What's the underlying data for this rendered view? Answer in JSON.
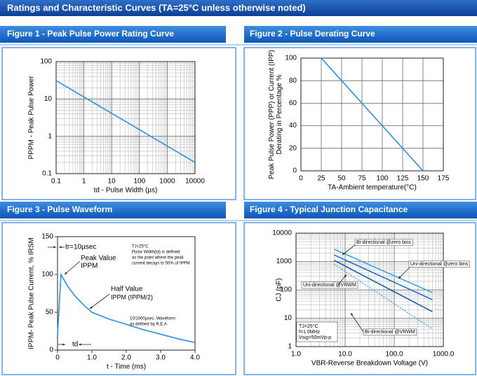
{
  "page_title": "Ratings and Characteristic Curves (TA=25°C unless otherwise noted)",
  "chart_data": [
    {
      "type": "line",
      "title": "Figure 1 - Peak Pulse Power Rating Curve",
      "xlabel": "td - Pulse Width (µs)",
      "ylabel": [
        "PPPM  -  Peak    Pulse    Power"
      ],
      "log_x": true,
      "log_y": true,
      "grid": true,
      "minor_grid": true,
      "color": "#2a8fe0",
      "x": [
        0.1,
        10000
      ],
      "values": [
        31,
        0.2
      ],
      "xlim": [
        0.1,
        10000
      ],
      "xticks": [
        0.1,
        1,
        10,
        100,
        1000,
        10000
      ],
      "ylim": [
        0.1,
        100
      ],
      "yticks": [
        0.1,
        1,
        10,
        100
      ],
      "annotations": []
    },
    {
      "type": "line",
      "title": "Figure 2 - Pulse Derating Curve",
      "xlabel": "TA-Ambient temperature(°C)",
      "ylabel": [
        "Peak Pulse Power (PPP) or Current (IPP)",
        "Derating in Percentage %"
      ],
      "log_x": false,
      "log_y": false,
      "grid": true,
      "minor_grid": false,
      "color": "#2a8fe0",
      "x": [
        25,
        150
      ],
      "values": [
        100,
        0
      ],
      "xlim": [
        0,
        175
      ],
      "xticks": [
        0,
        25,
        50,
        75,
        100,
        125,
        150,
        175
      ],
      "ylim": [
        0,
        100
      ],
      "yticks": [
        0,
        20,
        40,
        60,
        80,
        100
      ],
      "annotations": []
    },
    {
      "type": "line",
      "title": "Figure 3 - Pulse Waveform",
      "xlabel": "t - Time (ms)",
      "ylabel": [
        "IPPM- Peak Pulse Current, % IRSM"
      ],
      "log_x": false,
      "log_y": false,
      "grid": false,
      "minor_grid": false,
      "color": "#2a8fe0",
      "x": [
        0,
        0.1,
        0.3,
        0.5,
        0.75,
        1.0,
        1.5,
        2.0,
        2.5,
        3.0,
        3.5,
        4.0
      ],
      "values": [
        20,
        100,
        84,
        72,
        60,
        50,
        41,
        34,
        27,
        21,
        15,
        10
      ],
      "xlim": [
        0,
        4
      ],
      "xticks": [
        0,
        {
          "value": 1,
          "label": "1.0"
        },
        {
          "value": 2,
          "label": "2.0"
        },
        {
          "value": 3,
          "label": "3.0"
        },
        {
          "value": 4,
          "label": "4.0"
        }
      ],
      "ylim": [
        0,
        150
      ],
      "yticks": [
        0,
        50,
        100,
        150
      ],
      "annotations": [
        "tr=10µsec",
        "Peak Value",
        "IPPM",
        "Half Value",
        "IPPM (IPPM/2)",
        "td",
        "TJ=25°C",
        "Pulse Width(td) is defined",
        "as the point where the peak",
        "current decays to 50% of IPPM",
        "10/1000µsec. Waveform",
        "as defined by R.E.A"
      ]
    },
    {
      "type": "line",
      "title": "Figure 4 - Typical Junction Capacitance",
      "xlabel": "VBR-Reverse Breakdown Voltage (V)",
      "ylabel": [
        "CJ (pF)"
      ],
      "log_x": true,
      "log_y": true,
      "grid": true,
      "minor_grid": true,
      "series": [
        {
          "name": "Bi-directional @zero bins",
          "color": "#3aa0f0",
          "x": [
            6,
            600
          ],
          "values": [
            2700,
            80
          ]
        },
        {
          "name": "Uni-directional @zero bins",
          "color": "#1a6fd0",
          "x": [
            6,
            600
          ],
          "values": [
            1700,
            45
          ]
        },
        {
          "name": "Uni-directional @VRWM",
          "color": "#0f5cb0",
          "x": [
            6,
            600
          ],
          "values": [
            1100,
            17
          ]
        },
        {
          "name": "Bi-directional @VRWM",
          "color": "#4ab0f5",
          "x": [
            6,
            600
          ],
          "values": [
            800,
            4.2
          ]
        }
      ],
      "xlim": [
        1,
        1000
      ],
      "xticks": [
        {
          "value": 1,
          "label": "1.0"
        },
        {
          "value": 10,
          "label": "10.0"
        },
        {
          "value": 100,
          "label": "100.0"
        },
        {
          "value": 1000,
          "label": "1000.0"
        }
      ],
      "ylim": [
        1,
        10000
      ],
      "yticks": [
        1,
        10,
        100,
        1000,
        10000
      ],
      "annotations": [
        "TJ=25°C",
        "f=1.0MHz",
        "Vsig=50mVp-p"
      ]
    }
  ]
}
